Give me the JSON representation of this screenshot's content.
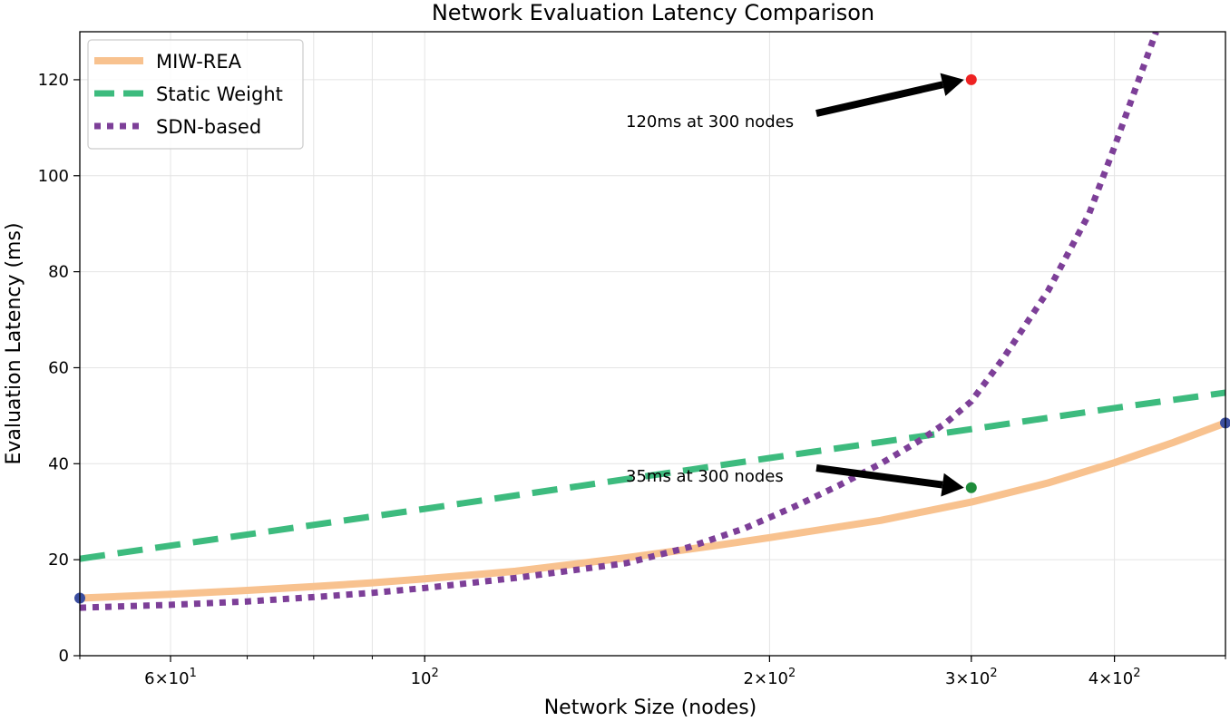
{
  "chart_data": {
    "type": "line",
    "title": "Network Evaluation Latency Comparison",
    "xlabel": "Network Size (nodes)",
    "ylabel": "Evaluation Latency (ms)",
    "xscale": "log",
    "xlim": [
      50,
      500
    ],
    "ylim": [
      0,
      130
    ],
    "grid": true,
    "legend_position": "top-left",
    "x_ticks": [
      {
        "value": 60,
        "base": "6",
        "sup": "1"
      },
      {
        "value": 100,
        "base": "10",
        "sup": "2"
      },
      {
        "value": 200,
        "base": "2",
        "sup": "2"
      },
      {
        "value": 300,
        "base": "3",
        "sup": "2"
      },
      {
        "value": 400,
        "base": "4",
        "sup": "2"
      }
    ],
    "y_ticks": [
      0,
      20,
      40,
      60,
      80,
      100,
      120
    ],
    "series": [
      {
        "name": "MIW-REA",
        "color": "#f8c28f",
        "style": "solid",
        "x": [
          50,
          60,
          70,
          80,
          90,
          100,
          120,
          150,
          180,
          200,
          250,
          300,
          350,
          400,
          450,
          500
        ],
        "values": [
          12,
          12.8,
          13.6,
          14.4,
          15.2,
          16,
          17.6,
          20.4,
          23,
          24.6,
          28.2,
          32,
          36,
          40.2,
          44.4,
          48.5
        ]
      },
      {
        "name": "Static Weight",
        "color": "#3dbb7e",
        "style": "dashed",
        "x": [
          50,
          100,
          200,
          300,
          400,
          500
        ],
        "values": [
          20.2,
          30.6,
          41.2,
          47.2,
          51.6,
          54.8
        ]
      },
      {
        "name": "SDN-based",
        "color": "#7d3f98",
        "style": "dotted",
        "x": [
          50,
          60,
          70,
          80,
          90,
          100,
          120,
          150,
          170,
          190,
          210,
          230,
          250,
          270,
          285,
          300,
          320,
          350,
          380,
          400,
          420,
          435
        ],
        "values": [
          10,
          10.6,
          11.3,
          12.2,
          13.1,
          14.1,
          16.2,
          19.3,
          22.6,
          26.5,
          31,
          35.5,
          40,
          44.7,
          48.5,
          53,
          62,
          76,
          92,
          106,
          120,
          130
        ]
      }
    ],
    "markers": [
      {
        "x": 300,
        "y": 120,
        "color": "#ee2222"
      },
      {
        "x": 300,
        "y": 35,
        "color": "#1e8c3a"
      },
      {
        "x": 50,
        "y": 12,
        "color": "#3b4ea0"
      },
      {
        "x": 500,
        "y": 48.5,
        "color": "#3b4ea0"
      }
    ],
    "annotations": [
      {
        "text": "120ms at 300 nodes",
        "text_x": 690,
        "text_y": 119,
        "target_x": 300,
        "target_y": 120
      },
      {
        "text": "35ms at 300 nodes",
        "text_x": 690,
        "text_y": 510,
        "target_x": 300,
        "target_y": 35
      }
    ]
  }
}
